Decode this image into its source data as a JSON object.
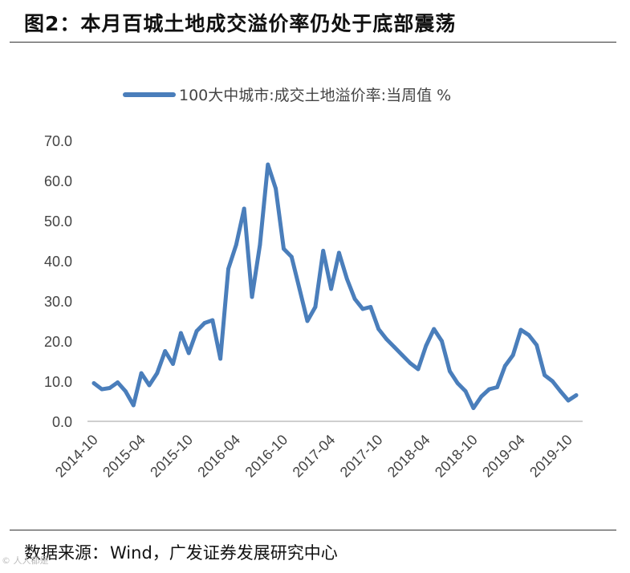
{
  "figure": {
    "title": "图2：本月百城土地成交溢价率仍处于底部震荡",
    "source_label": "数据来源：",
    "source_value": "Wind，广发证券发展研究中心",
    "watermark": "© 人人都是"
  },
  "colors": {
    "series": "#4a7ebb",
    "axis": "#bfbfbf"
  },
  "chart_data": {
    "type": "line",
    "title": "",
    "xlabel": "",
    "ylabel": "",
    "ylim": [
      0,
      70
    ],
    "yticks": [
      "0.0",
      "10.0",
      "20.0",
      "30.0",
      "40.0",
      "50.0",
      "60.0",
      "70.0"
    ],
    "grid": false,
    "legend_position": "top-center",
    "x_tick_labels": [
      "2014-10",
      "2015-04",
      "2015-10",
      "2016-04",
      "2016-10",
      "2017-04",
      "2017-10",
      "2018-04",
      "2018-10",
      "2019-04",
      "2019-10"
    ],
    "series": [
      {
        "name": "100大中城市:成交土地溢价率:当周值 %",
        "x_start": "2014-10",
        "x_step_months": 1,
        "values": [
          9.5,
          8,
          8.3,
          9.7,
          7.5,
          4,
          12,
          9,
          12,
          17.5,
          14.3,
          22,
          17,
          22.5,
          24.5,
          25.2,
          15.6,
          38,
          44,
          53,
          31,
          44,
          64,
          58,
          43,
          41,
          33,
          25,
          28.5,
          42.5,
          33,
          42,
          35.5,
          30.5,
          28,
          28.5,
          23,
          20.5,
          18.5,
          16.5,
          14.5,
          13,
          18.8,
          23,
          20,
          12.5,
          9.5,
          7.5,
          3.3,
          6.2,
          8,
          8.5,
          13.8,
          16.5,
          22.8,
          21.5,
          19,
          11.5,
          10,
          7.5,
          5.2,
          6.5
        ]
      }
    ]
  }
}
